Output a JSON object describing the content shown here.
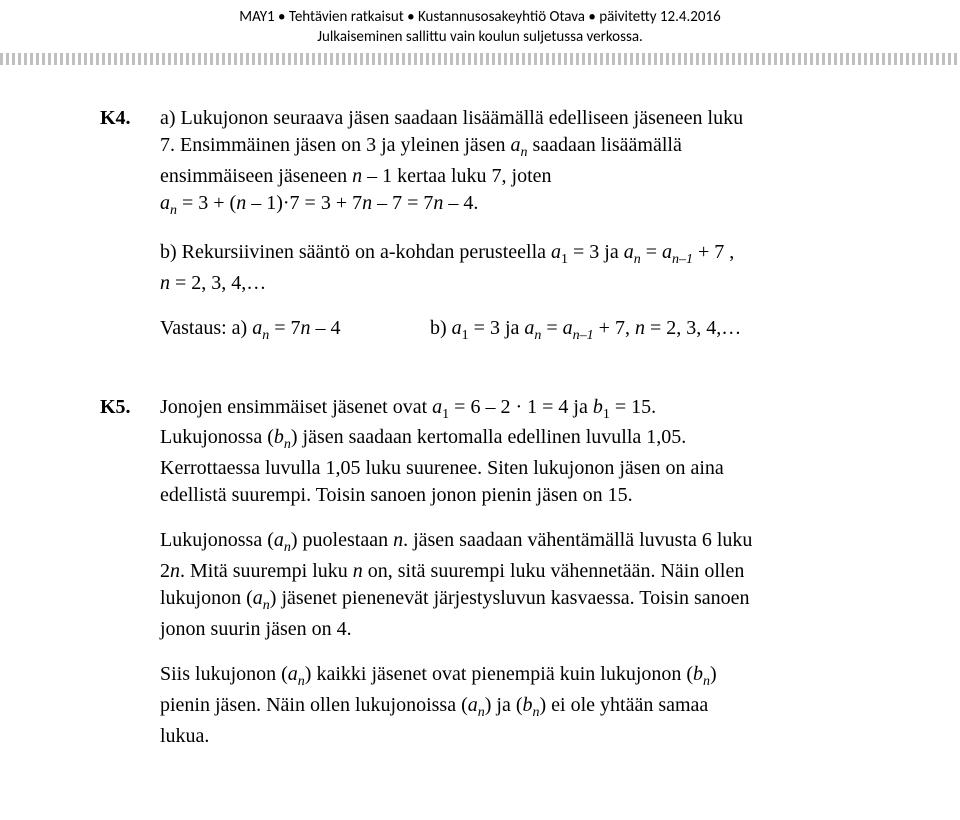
{
  "header": {
    "line1": "MAY1 • Tehtävien ratkaisut • Kustannusosakeyhtiö Otava • päivitetty 12.4.2016",
    "line2": "Julkaiseminen sallittu vain koulun suljetussa verkossa."
  },
  "k4": {
    "label": "K4.",
    "a_line1": "a)  Lukujonon seuraava jäsen saadaan lisäämällä edelliseen jäseneen luku",
    "a_line2_pre": "7. Ensimmäinen jäsen on 3 ja yleinen jäsen ",
    "a_line2_post": " saadaan lisäämällä",
    "a_line3_pre": "ensimmäiseen jäseneen ",
    "a_line3_mid": " – 1 kertaa luku 7, joten",
    "a_line4_pre": "",
    "a_line4": " = 3 + (",
    "a_line4_b": " – 1)·7 = 3 + 7",
    "a_line4_c": " – 7 = 7",
    "a_line4_d": " – 4.",
    "b_line1_pre": "b)  Rekursiivinen sääntö on a-kohdan perusteella ",
    "b_line1_a1": " = 3 ja  ",
    "b_line1_eq": " = ",
    "b_line1_post": " + 7 ,",
    "b_line2": " = 2, 3, 4,…",
    "ans_label": "Vastaus: ",
    "ans_a_pre": "a) ",
    "ans_a_eq": " = 7",
    "ans_a_post": " – 4",
    "ans_b_pre": "b)  ",
    "ans_b_a1": " = 3 ja  ",
    "ans_b_eq": " = ",
    "ans_b_post": " + 7, ",
    "ans_b_n": " = 2, 3, 4,…"
  },
  "k5": {
    "label": "K5.",
    "p1_pre": "Jonojen ensimmäiset jäsenet ovat ",
    "p1_a": " = 6 – 2 · 1 = 4 ja ",
    "p1_b": " = 15.",
    "p1_l2_pre": "Lukujonossa (",
    "p1_l2_post": ") jäsen saadaan kertomalla edellinen luvulla 1,05.",
    "p1_l3": "Kerrottaessa luvulla 1,05 luku suurenee. Siten lukujonon jäsen on aina",
    "p1_l4": "edellistä suurempi. Toisin sanoen jonon pienin jäsen on 15.",
    "p2_pre": "Lukujonossa (",
    "p2_mid": ") puolestaan ",
    "p2_post": ". jäsen saadaan vähentämällä luvusta 6 luku",
    "p2_l2_pre": "2",
    "p2_l2_mid": ". Mitä suurempi luku ",
    "p2_l2_post": " on, sitä suurempi luku vähennetään. Näin ollen",
    "p2_l3_pre": "lukujonon (",
    "p2_l3_post": ") jäsenet pienenevät järjestysluvun kasvaessa. Toisin sanoen",
    "p2_l4": "jonon suurin jäsen on 4.",
    "p3_l1_pre": "Siis lukujonon (",
    "p3_l1_mid": ") kaikki jäsenet ovat pienempiä kuin lukujonon (",
    "p3_l1_post": ")",
    "p3_l2_pre": "pienin jäsen. Näin ollen lukujonoissa (",
    "p3_l2_mid": ") ja (",
    "p3_l2_post": ") ei ole yhtään samaa",
    "p3_l3": "lukua."
  },
  "sym": {
    "a": "a",
    "b": "b",
    "n": "n",
    "nminus1": "n–1",
    "one": "1"
  }
}
